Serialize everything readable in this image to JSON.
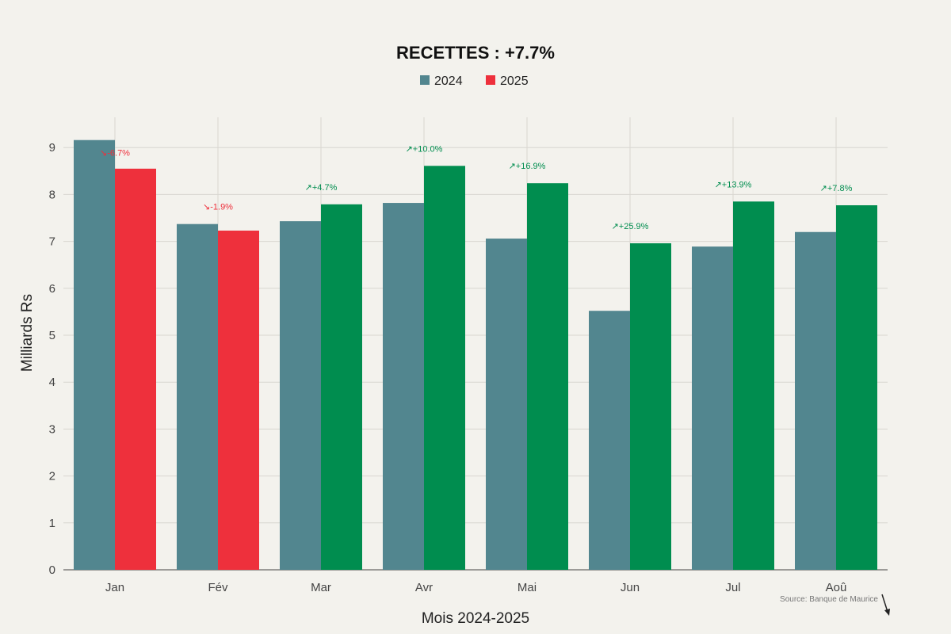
{
  "chart_data": {
    "type": "bar",
    "title": "RECETTES : +7.7%",
    "xlabel": "Mois 2024-2025",
    "ylabel": "Milliards Rs",
    "ylim": [
      0,
      9.6
    ],
    "yticks": [
      "0",
      "1",
      "2",
      "3",
      "4",
      "5",
      "6",
      "7",
      "8",
      "9"
    ],
    "categories": [
      "Jan",
      "Fév",
      "Mar",
      "Avr",
      "Mai",
      "Jun",
      "Jul",
      "Aoû"
    ],
    "series": [
      {
        "name": "2024",
        "color": "#52868f",
        "values": [
          9.16,
          7.37,
          7.43,
          7.82,
          7.06,
          5.52,
          6.89,
          7.2
        ]
      },
      {
        "name": "2025",
        "values": [
          8.55,
          7.23,
          7.79,
          8.61,
          8.24,
          6.96,
          7.85,
          7.77
        ],
        "colors": [
          "#ee303c",
          "#ee303c",
          "#008d4f",
          "#008d4f",
          "#008d4f",
          "#008d4f",
          "#008d4f",
          "#008d4f"
        ]
      }
    ],
    "legend_position": "top-center",
    "legend_colors": {
      "2024": "#52868f",
      "2025": "#ee303c"
    },
    "annotations": [
      "↘-6.7%",
      "↘-1.9%",
      "↗+4.7%",
      "↗+10.0%",
      "↗+16.9%",
      "↗+25.9%",
      "↗+13.9%",
      "↗+7.8%"
    ],
    "annotation_colors": {
      "down": "#ee303c",
      "up": "#008d4f"
    },
    "source": "Source: Banque de Maurice",
    "grid": true
  }
}
